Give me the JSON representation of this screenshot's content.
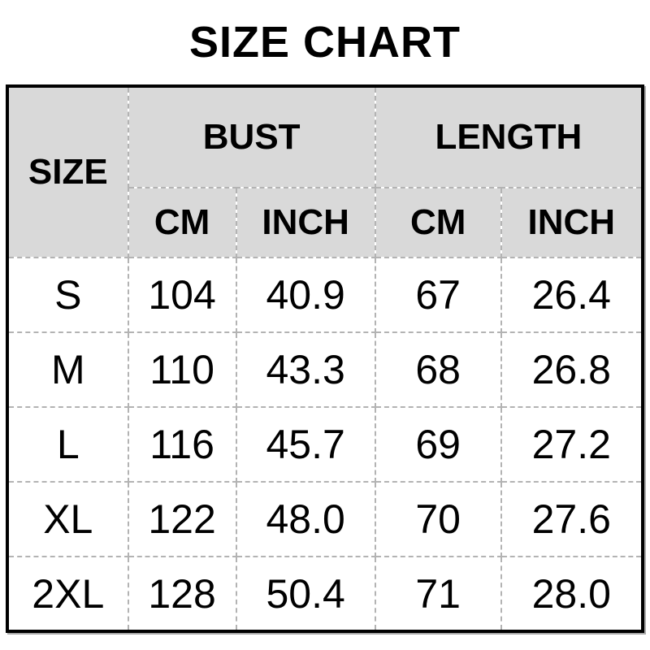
{
  "page": {
    "title": "SIZE CHART"
  },
  "table": {
    "header": {
      "size_label": "SIZE",
      "bust_label": "BUST",
      "length_label": "LENGTH",
      "bust_cm_label": "CM",
      "bust_inch_label": "INCH",
      "length_cm_label": "CM",
      "length_inch_label": "INCH"
    },
    "rows": [
      {
        "size": "S",
        "bust_cm": "104",
        "bust_inch": "40.9",
        "length_cm": "67",
        "length_inch": "26.4"
      },
      {
        "size": "M",
        "bust_cm": "110",
        "bust_inch": "43.3",
        "length_cm": "68",
        "length_inch": "26.8"
      },
      {
        "size": "L",
        "bust_cm": "116",
        "bust_inch": "45.7",
        "length_cm": "69",
        "length_inch": "27.2"
      },
      {
        "size": "XL",
        "bust_cm": "122",
        "bust_inch": "48.0",
        "length_cm": "70",
        "length_inch": "27.6"
      },
      {
        "size": "2XL",
        "bust_cm": "128",
        "bust_inch": "50.4",
        "length_cm": "71",
        "length_inch": "28.0"
      }
    ]
  },
  "colors": {
    "background": "#ffffff",
    "header_background": "#d9d9d9",
    "outer_border": "#000000",
    "inner_dashed_border": "#b3b3b3",
    "text": "#000000"
  },
  "chart_data": {
    "type": "table",
    "title": "SIZE CHART",
    "categories": [
      "S",
      "M",
      "L",
      "XL",
      "2XL"
    ],
    "series": [
      {
        "name": "BUST CM",
        "values": [
          104,
          110,
          116,
          122,
          128
        ]
      },
      {
        "name": "BUST INCH",
        "values": [
          40.9,
          43.3,
          45.7,
          48.0,
          50.4
        ]
      },
      {
        "name": "LENGTH CM",
        "values": [
          67,
          68,
          69,
          70,
          71
        ]
      },
      {
        "name": "LENGTH INCH",
        "values": [
          26.4,
          26.8,
          27.2,
          27.6,
          28.0
        ]
      }
    ]
  }
}
